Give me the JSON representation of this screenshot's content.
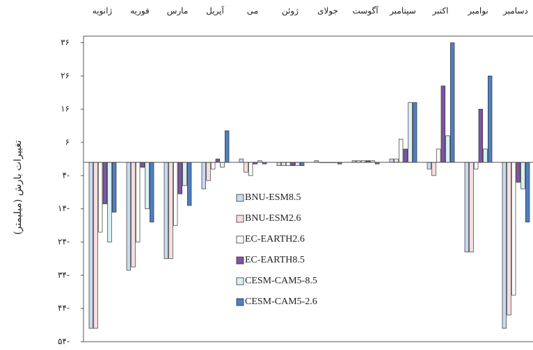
{
  "chart_data": {
    "type": "bar",
    "y_label": "تغییرات بارش (میلیمتر)",
    "categories": [
      "ژانویه",
      "فوریه",
      "مارس",
      "آپریل",
      "می",
      "ژوئن",
      "جولای",
      "آگوست",
      "سپتامبر",
      "اکتبر",
      "نوامبر",
      "دسامبر"
    ],
    "series": [
      {
        "name": "BNU-ESM8.5",
        "color": "#c9d9f0",
        "values": [
          -50,
          -32.5,
          -29,
          -8,
          1,
          -1,
          0.5,
          0.5,
          1,
          -2,
          -27,
          -50
        ]
      },
      {
        "name": "BNU-ESM2.6",
        "color": "#f6dede",
        "values": [
          -50,
          -31.5,
          -29,
          -5.5,
          -3,
          -1,
          0,
          0.5,
          1,
          -4,
          -27,
          -46
        ]
      },
      {
        "name": "EC-EARTH2.6",
        "color": "#ffffff",
        "values": [
          -21,
          -24,
          -19,
          -2,
          -4,
          -1,
          0,
          0.5,
          7,
          4,
          -2,
          -40
        ]
      },
      {
        "name": "EC-EARTH8.5",
        "color": "#7d55a3",
        "values": [
          -12.5,
          -1.5,
          -9.5,
          1,
          -0.5,
          -1,
          0,
          0.5,
          4,
          23,
          16,
          -6
        ]
      },
      {
        "name": "CESM-CAM5-8.5",
        "color": "#d8f1f5",
        "values": [
          -24,
          -14,
          -7,
          -1.5,
          0.5,
          -1,
          0,
          0.5,
          18,
          8,
          4,
          -8
        ]
      },
      {
        "name": "CESM-CAM5-2.6",
        "color": "#4f7fc0",
        "values": [
          -15,
          -18,
          -13,
          9.5,
          -0.5,
          -1,
          -0.5,
          -0.5,
          18,
          36,
          26,
          -18
        ]
      }
    ],
    "ylim": [
      -54,
      38
    ],
    "yticks": [
      {
        "value": 36,
        "label": "۳۶"
      },
      {
        "value": 26,
        "label": "۲۶"
      },
      {
        "value": 16,
        "label": "۱۶"
      },
      {
        "value": 6,
        "label": "۶"
      },
      {
        "value": -4,
        "label": "۴-"
      },
      {
        "value": -14,
        "label": "۱۴-"
      },
      {
        "value": -24,
        "label": "۲۴-"
      },
      {
        "value": -34,
        "label": "۳۴-"
      },
      {
        "value": -44,
        "label": "۴۴-"
      },
      {
        "value": -54,
        "label": "۵۴-"
      }
    ]
  }
}
